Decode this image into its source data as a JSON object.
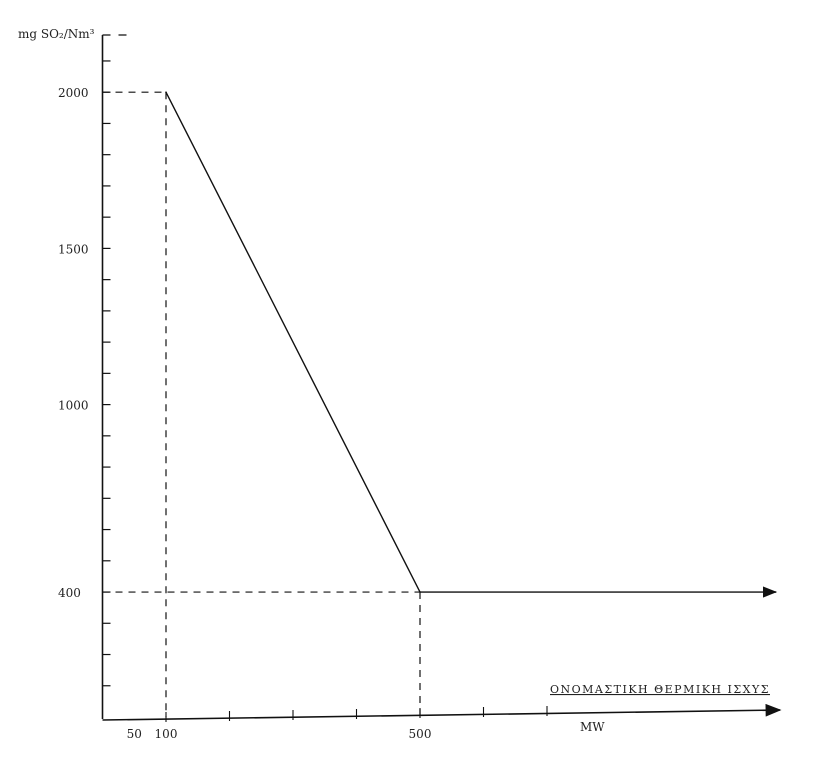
{
  "chart_data": {
    "type": "line",
    "title": "",
    "ylabel": "mg SO₂/Nm³",
    "xlabel": "ΟΝΟΜΑΣΤΙΚΗ ΘΕΡΜΙΚΗ ΙΣΧΥΣ",
    "xunit": "MW",
    "xlim": [
      0,
      1065
    ],
    "ylim": [
      0,
      2100
    ],
    "x_tick_labels": [
      "50",
      "100",
      "500"
    ],
    "x_ticks": [
      50,
      100,
      500
    ],
    "y_tick_labels": [
      "2000",
      "1500",
      "1000",
      "400"
    ],
    "y_ticks": [
      2000,
      1500,
      1000,
      400
    ],
    "grid": false,
    "series": [
      {
        "x": [
          100,
          500,
          1060
        ],
        "y": [
          2000,
          400,
          400
        ]
      }
    ],
    "reference_lines": [
      {
        "x": 100,
        "y": 2000
      },
      {
        "x": 500,
        "y": 400
      }
    ],
    "color": "#111111"
  }
}
